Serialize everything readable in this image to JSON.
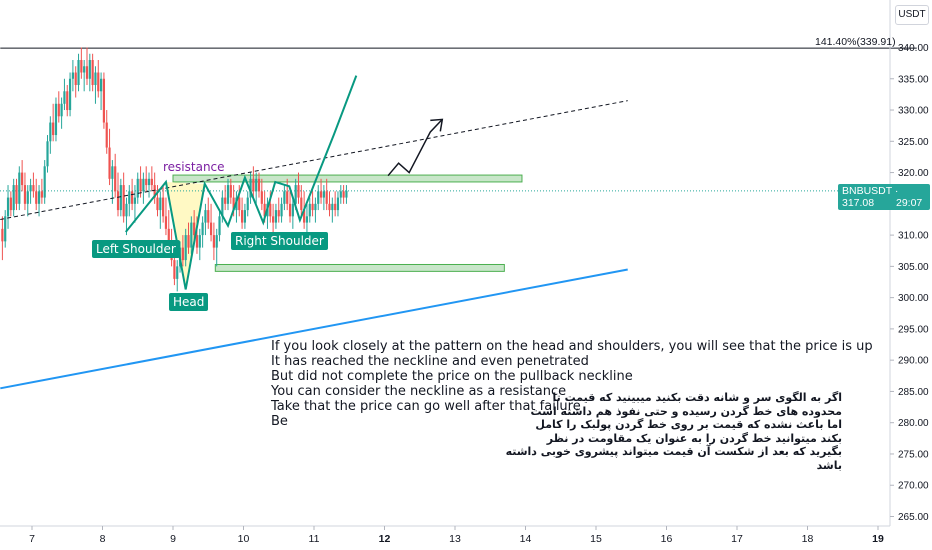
{
  "chart_data": {
    "type": "candlestick",
    "symbol": "BNBUSDT",
    "quote_currency": "USDT",
    "current_price": "317.08",
    "countdown": "29:07",
    "fib_level_label": "141.40%(339.91)",
    "fib_level_value": 339.91,
    "y_ticks": [
      340,
      335,
      330,
      325,
      320,
      315,
      310,
      305,
      300,
      295,
      290,
      285,
      280,
      275,
      270,
      265
    ],
    "y_tick_labels": [
      "340.00",
      "335.00",
      "330.00",
      "325.00",
      "320.00",
      "315.00",
      "310.00",
      "305.00",
      "300.00",
      "295.00",
      "290.00",
      "285.00",
      "280.00",
      "275.00",
      "270.00",
      "265.00"
    ],
    "x_ticks": [
      7,
      8,
      9,
      10,
      11,
      12,
      13,
      14,
      15,
      16,
      17,
      18,
      19
    ],
    "x_tick_labels": [
      "7",
      "8",
      "9",
      "10",
      "11",
      "12",
      "13",
      "14",
      "15",
      "16",
      "17",
      "18",
      "19"
    ],
    "ylim": [
      263,
      350
    ],
    "xlim": [
      6.55,
      19.55
    ],
    "candles": [
      {
        "x": 6.58,
        "o": 311,
        "h": 313,
        "l": 306,
        "c": 309
      },
      {
        "x": 6.62,
        "o": 309,
        "h": 314,
        "l": 308,
        "c": 313
      },
      {
        "x": 6.66,
        "o": 313,
        "h": 318,
        "l": 311,
        "c": 316
      },
      {
        "x": 6.7,
        "o": 316,
        "h": 317,
        "l": 313,
        "c": 314
      },
      {
        "x": 6.74,
        "o": 314,
        "h": 319,
        "l": 313,
        "c": 318
      },
      {
        "x": 6.78,
        "o": 318,
        "h": 319,
        "l": 314,
        "c": 315
      },
      {
        "x": 6.82,
        "o": 315,
        "h": 321,
        "l": 314,
        "c": 320
      },
      {
        "x": 6.86,
        "o": 320,
        "h": 322,
        "l": 317,
        "c": 318
      },
      {
        "x": 6.9,
        "o": 318,
        "h": 320,
        "l": 314,
        "c": 315
      },
      {
        "x": 6.94,
        "o": 315,
        "h": 318,
        "l": 313,
        "c": 317
      },
      {
        "x": 6.98,
        "o": 317,
        "h": 319,
        "l": 315,
        "c": 318
      },
      {
        "x": 7.02,
        "o": 318,
        "h": 320,
        "l": 316,
        "c": 317
      },
      {
        "x": 7.06,
        "o": 317,
        "h": 319,
        "l": 314,
        "c": 315
      },
      {
        "x": 7.1,
        "o": 315,
        "h": 318,
        "l": 313,
        "c": 317
      },
      {
        "x": 7.14,
        "o": 317,
        "h": 319,
        "l": 315,
        "c": 316
      },
      {
        "x": 7.18,
        "o": 316,
        "h": 322,
        "l": 315,
        "c": 321
      },
      {
        "x": 7.22,
        "o": 321,
        "h": 326,
        "l": 320,
        "c": 325
      },
      {
        "x": 7.26,
        "o": 325,
        "h": 329,
        "l": 323,
        "c": 328
      },
      {
        "x": 7.3,
        "o": 328,
        "h": 331,
        "l": 325,
        "c": 326
      },
      {
        "x": 7.34,
        "o": 326,
        "h": 332,
        "l": 325,
        "c": 331
      },
      {
        "x": 7.38,
        "o": 331,
        "h": 333,
        "l": 328,
        "c": 329
      },
      {
        "x": 7.42,
        "o": 329,
        "h": 332,
        "l": 327,
        "c": 331
      },
      {
        "x": 7.46,
        "o": 331,
        "h": 335,
        "l": 330,
        "c": 333
      },
      {
        "x": 7.5,
        "o": 333,
        "h": 334,
        "l": 329,
        "c": 330
      },
      {
        "x": 7.54,
        "o": 330,
        "h": 336,
        "l": 329,
        "c": 335
      },
      {
        "x": 7.58,
        "o": 335,
        "h": 338,
        "l": 333,
        "c": 336
      },
      {
        "x": 7.62,
        "o": 336,
        "h": 337,
        "l": 332,
        "c": 334
      },
      {
        "x": 7.66,
        "o": 334,
        "h": 339,
        "l": 333,
        "c": 338
      },
      {
        "x": 7.7,
        "o": 338,
        "h": 340,
        "l": 335,
        "c": 336
      },
      {
        "x": 7.74,
        "o": 336,
        "h": 338,
        "l": 333,
        "c": 337
      },
      {
        "x": 7.78,
        "o": 337,
        "h": 340,
        "l": 334,
        "c": 335
      },
      {
        "x": 7.82,
        "o": 335,
        "h": 339,
        "l": 333,
        "c": 338
      },
      {
        "x": 7.86,
        "o": 338,
        "h": 339,
        "l": 333,
        "c": 334
      },
      {
        "x": 7.9,
        "o": 334,
        "h": 337,
        "l": 331,
        "c": 336
      },
      {
        "x": 7.94,
        "o": 336,
        "h": 338,
        "l": 332,
        "c": 333
      },
      {
        "x": 7.98,
        "o": 333,
        "h": 336,
        "l": 330,
        "c": 335
      },
      {
        "x": 8.02,
        "o": 335,
        "h": 336,
        "l": 327,
        "c": 328
      },
      {
        "x": 8.06,
        "o": 328,
        "h": 330,
        "l": 323,
        "c": 324
      },
      {
        "x": 8.1,
        "o": 324,
        "h": 327,
        "l": 318,
        "c": 319
      },
      {
        "x": 8.14,
        "o": 319,
        "h": 322,
        "l": 315,
        "c": 321
      },
      {
        "x": 8.18,
        "o": 321,
        "h": 323,
        "l": 316,
        "c": 317
      },
      {
        "x": 8.22,
        "o": 317,
        "h": 320,
        "l": 313,
        "c": 314
      },
      {
        "x": 8.26,
        "o": 314,
        "h": 319,
        "l": 313,
        "c": 318
      },
      {
        "x": 8.3,
        "o": 318,
        "h": 320,
        "l": 312,
        "c": 313
      },
      {
        "x": 8.34,
        "o": 313,
        "h": 316,
        "l": 310,
        "c": 315
      },
      {
        "x": 8.38,
        "o": 315,
        "h": 318,
        "l": 313,
        "c": 317
      },
      {
        "x": 8.42,
        "o": 317,
        "h": 319,
        "l": 314,
        "c": 315
      },
      {
        "x": 8.46,
        "o": 315,
        "h": 318,
        "l": 312,
        "c": 316
      },
      {
        "x": 8.5,
        "o": 316,
        "h": 320,
        "l": 315,
        "c": 319
      },
      {
        "x": 8.54,
        "o": 319,
        "h": 321,
        "l": 316,
        "c": 317
      },
      {
        "x": 8.58,
        "o": 317,
        "h": 320,
        "l": 315,
        "c": 319
      },
      {
        "x": 8.62,
        "o": 319,
        "h": 321,
        "l": 317,
        "c": 318
      },
      {
        "x": 8.66,
        "o": 318,
        "h": 320,
        "l": 316,
        "c": 319
      },
      {
        "x": 8.7,
        "o": 319,
        "h": 321,
        "l": 317,
        "c": 318
      },
      {
        "x": 8.74,
        "o": 318,
        "h": 320,
        "l": 315,
        "c": 316
      },
      {
        "x": 8.78,
        "o": 316,
        "h": 318,
        "l": 313,
        "c": 314
      },
      {
        "x": 8.82,
        "o": 314,
        "h": 317,
        "l": 311,
        "c": 316
      },
      {
        "x": 8.86,
        "o": 316,
        "h": 318,
        "l": 312,
        "c": 313
      },
      {
        "x": 8.9,
        "o": 313,
        "h": 316,
        "l": 310,
        "c": 311
      },
      {
        "x": 8.94,
        "o": 311,
        "h": 314,
        "l": 307,
        "c": 308
      },
      {
        "x": 8.98,
        "o": 308,
        "h": 311,
        "l": 305,
        "c": 306
      },
      {
        "x": 9.02,
        "o": 306,
        "h": 308,
        "l": 302,
        "c": 303
      },
      {
        "x": 9.06,
        "o": 303,
        "h": 306,
        "l": 301,
        "c": 305
      },
      {
        "x": 9.1,
        "o": 305,
        "h": 309,
        "l": 304,
        "c": 308
      },
      {
        "x": 9.14,
        "o": 308,
        "h": 310,
        "l": 305,
        "c": 306
      },
      {
        "x": 9.18,
        "o": 306,
        "h": 311,
        "l": 305,
        "c": 310
      },
      {
        "x": 9.22,
        "o": 310,
        "h": 312,
        "l": 307,
        "c": 308
      },
      {
        "x": 9.26,
        "o": 308,
        "h": 313,
        "l": 307,
        "c": 312
      },
      {
        "x": 9.3,
        "o": 312,
        "h": 314,
        "l": 309,
        "c": 310
      },
      {
        "x": 9.34,
        "o": 310,
        "h": 313,
        "l": 307,
        "c": 308
      },
      {
        "x": 9.38,
        "o": 308,
        "h": 311,
        "l": 306,
        "c": 310
      },
      {
        "x": 9.42,
        "o": 310,
        "h": 313,
        "l": 308,
        "c": 312
      },
      {
        "x": 9.46,
        "o": 312,
        "h": 315,
        "l": 310,
        "c": 314
      },
      {
        "x": 9.5,
        "o": 314,
        "h": 316,
        "l": 311,
        "c": 312
      },
      {
        "x": 9.54,
        "o": 312,
        "h": 315,
        "l": 309,
        "c": 310
      },
      {
        "x": 9.58,
        "o": 310,
        "h": 312,
        "l": 306,
        "c": 308
      },
      {
        "x": 9.62,
        "o": 308,
        "h": 311,
        "l": 305,
        "c": 310
      },
      {
        "x": 9.66,
        "o": 310,
        "h": 314,
        "l": 309,
        "c": 313
      },
      {
        "x": 9.7,
        "o": 313,
        "h": 317,
        "l": 312,
        "c": 316
      },
      {
        "x": 9.74,
        "o": 316,
        "h": 318,
        "l": 314,
        "c": 315
      },
      {
        "x": 9.78,
        "o": 315,
        "h": 319,
        "l": 314,
        "c": 318
      },
      {
        "x": 9.82,
        "o": 318,
        "h": 319,
        "l": 315,
        "c": 316
      },
      {
        "x": 9.86,
        "o": 316,
        "h": 318,
        "l": 313,
        "c": 314
      },
      {
        "x": 9.9,
        "o": 314,
        "h": 317,
        "l": 312,
        "c": 316
      },
      {
        "x": 9.94,
        "o": 316,
        "h": 318,
        "l": 313,
        "c": 314
      },
      {
        "x": 9.98,
        "o": 314,
        "h": 316,
        "l": 311,
        "c": 312
      },
      {
        "x": 10.02,
        "o": 312,
        "h": 315,
        "l": 311,
        "c": 314
      },
      {
        "x": 10.06,
        "o": 314,
        "h": 317,
        "l": 313,
        "c": 316
      },
      {
        "x": 10.1,
        "o": 316,
        "h": 320,
        "l": 315,
        "c": 319
      },
      {
        "x": 10.14,
        "o": 319,
        "h": 321,
        "l": 316,
        "c": 317
      },
      {
        "x": 10.18,
        "o": 317,
        "h": 320,
        "l": 315,
        "c": 319
      },
      {
        "x": 10.22,
        "o": 319,
        "h": 320,
        "l": 316,
        "c": 317
      },
      {
        "x": 10.26,
        "o": 317,
        "h": 319,
        "l": 314,
        "c": 315
      },
      {
        "x": 10.3,
        "o": 315,
        "h": 317,
        "l": 312,
        "c": 313
      },
      {
        "x": 10.34,
        "o": 313,
        "h": 316,
        "l": 311,
        "c": 315
      },
      {
        "x": 10.38,
        "o": 315,
        "h": 317,
        "l": 312,
        "c": 313
      },
      {
        "x": 10.42,
        "o": 313,
        "h": 315,
        "l": 310,
        "c": 312
      },
      {
        "x": 10.46,
        "o": 312,
        "h": 315,
        "l": 311,
        "c": 314
      },
      {
        "x": 10.5,
        "o": 314,
        "h": 316,
        "l": 312,
        "c": 313
      },
      {
        "x": 10.54,
        "o": 313,
        "h": 316,
        "l": 312,
        "c": 315
      },
      {
        "x": 10.58,
        "o": 315,
        "h": 318,
        "l": 314,
        "c": 317
      },
      {
        "x": 10.62,
        "o": 317,
        "h": 319,
        "l": 314,
        "c": 315
      },
      {
        "x": 10.66,
        "o": 315,
        "h": 317,
        "l": 312,
        "c": 313
      },
      {
        "x": 10.7,
        "o": 313,
        "h": 316,
        "l": 311,
        "c": 315
      },
      {
        "x": 10.74,
        "o": 315,
        "h": 319,
        "l": 314,
        "c": 318
      },
      {
        "x": 10.78,
        "o": 318,
        "h": 320,
        "l": 315,
        "c": 316
      },
      {
        "x": 10.82,
        "o": 316,
        "h": 318,
        "l": 313,
        "c": 314
      },
      {
        "x": 10.86,
        "o": 314,
        "h": 317,
        "l": 311,
        "c": 312
      },
      {
        "x": 10.9,
        "o": 312,
        "h": 315,
        "l": 310,
        "c": 313
      },
      {
        "x": 10.94,
        "o": 313,
        "h": 316,
        "l": 312,
        "c": 315
      },
      {
        "x": 10.98,
        "o": 315,
        "h": 317,
        "l": 313,
        "c": 314
      },
      {
        "x": 11.02,
        "o": 314,
        "h": 316,
        "l": 312,
        "c": 315
      },
      {
        "x": 11.06,
        "o": 315,
        "h": 318,
        "l": 314,
        "c": 317
      },
      {
        "x": 11.1,
        "o": 317,
        "h": 319,
        "l": 315,
        "c": 316
      },
      {
        "x": 11.14,
        "o": 316,
        "h": 318,
        "l": 314,
        "c": 317
      },
      {
        "x": 11.18,
        "o": 317,
        "h": 319,
        "l": 314,
        "c": 315
      },
      {
        "x": 11.22,
        "o": 315,
        "h": 317,
        "l": 313,
        "c": 314
      },
      {
        "x": 11.26,
        "o": 314,
        "h": 316,
        "l": 312,
        "c": 315
      },
      {
        "x": 11.3,
        "o": 315,
        "h": 317,
        "l": 313,
        "c": 314
      },
      {
        "x": 11.34,
        "o": 314,
        "h": 317,
        "l": 313,
        "c": 316
      },
      {
        "x": 11.38,
        "o": 316,
        "h": 318,
        "l": 315,
        "c": 317
      },
      {
        "x": 11.42,
        "o": 317,
        "h": 318,
        "l": 315,
        "c": 316
      },
      {
        "x": 11.46,
        "o": 316,
        "h": 318,
        "l": 315,
        "c": 317.08
      }
    ],
    "drawings": {
      "channel_upper": [
        [
          6.55,
          350.5
        ],
        [
          9.65,
          352.5
        ]
      ],
      "channel_lower": [
        [
          6.55,
          285.5
        ],
        [
          15.45,
          304.5
        ]
      ],
      "neckline_dashed": [
        [
          6.55,
          312.5
        ],
        [
          15.45,
          331.5
        ]
      ],
      "fib_line": [
        [
          6.55,
          339.91
        ],
        [
          19.55,
          339.91
        ]
      ],
      "zone_upper": {
        "x": [
          9.0,
          13.95
        ],
        "y": [
          318.5,
          319.6
        ]
      },
      "zone_lower": {
        "x": [
          9.6,
          13.7
        ],
        "y": [
          304.2,
          305.3
        ]
      },
      "pattern_path": [
        [
          8.33,
          310.5
        ],
        [
          8.9,
          318.5
        ],
        [
          9.18,
          301.3
        ],
        [
          9.45,
          318.2
        ],
        [
          9.78,
          311.5
        ],
        [
          10.02,
          319.2
        ],
        [
          10.28,
          312.0
        ],
        [
          10.45,
          318.5
        ],
        [
          10.65,
          317.8
        ],
        [
          10.8,
          312.4
        ],
        [
          11.28,
          326.0
        ],
        [
          11.6,
          335.5
        ]
      ],
      "head_fill": [
        [
          8.9,
          318.5
        ],
        [
          9.18,
          301.3
        ],
        [
          9.45,
          318.2
        ]
      ],
      "projection_arrow": [
        [
          12.05,
          319.5
        ],
        [
          12.2,
          321.5
        ],
        [
          12.35,
          320.0
        ],
        [
          12.65,
          326.5
        ],
        [
          12.82,
          328.5
        ]
      ]
    },
    "annotations": {
      "resistance": "resistance",
      "left_shoulder": "Left Shoulder",
      "head": "Head",
      "right_shoulder": "Right Shoulder"
    },
    "colors": {
      "up": "#26a69a",
      "down": "#ef5350",
      "channel": "#2196f3",
      "pattern_line": "#089981",
      "head_fill": "#fff9c4",
      "zone_fill": "#c8e6c9",
      "zone_border": "#4caf50",
      "resistance_text": "#7b1fa2"
    }
  },
  "notes_en": [
    "If you look closely at the pattern on the head and shoulders, you will see that the price is up",
    "It has reached the neckline and even penetrated",
    "But did not complete the price on the pullback neckline",
    "You can consider the neckline as a resistance",
    "Take that the price can go well after that failure",
    "Be"
  ],
  "notes_fa": [
    "اگر به الگوی سر و شانه دقت بکنید میبینید که قیمت تا",
    "محدوده های خط گردن رسیده و حتی نفوذ هم داشته است",
    "اما باعث نشده که قیمت بر روی خط گردن پولبک را کامل",
    "بکند میتوانید خط گردن را به عنوان یک مقاومت در نظر",
    "بگیرید که بعد از شکست آن قیمت میتواند پیشروی خوبی داشته",
    "باشد"
  ]
}
